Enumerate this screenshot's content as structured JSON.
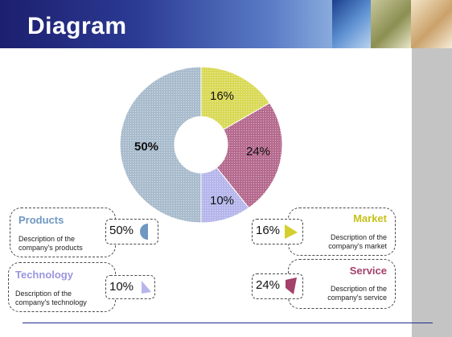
{
  "header": {
    "title": "Diagram"
  },
  "chart_data": {
    "type": "pie",
    "style": "donut",
    "slices": [
      {
        "label": "16%",
        "value": 16,
        "color": "#d9d957"
      },
      {
        "label": "24%",
        "value": 24,
        "color": "#b56a8e"
      },
      {
        "label": "10%",
        "value": 10,
        "color": "#b6b6ec"
      },
      {
        "label": "50%",
        "value": 50,
        "color": "#a9bccd"
      }
    ]
  },
  "items": {
    "products": {
      "title": "Products",
      "color": "#6f97c2",
      "pct": "50%",
      "desc1": "Description of the",
      "desc2": "company's products"
    },
    "technology": {
      "title": "Technology",
      "color": "#9a95e0",
      "pct": "10%",
      "desc1": "Description of the",
      "desc2": "company's technology"
    },
    "market": {
      "title": "Market",
      "color": "#c6c21a",
      "pct": "16%",
      "desc1": "Description of the",
      "desc2": "company's market"
    },
    "service": {
      "title": "Service",
      "color": "#a3416b",
      "pct": "24%",
      "desc1": "Description of the",
      "desc2": "company's service"
    }
  }
}
